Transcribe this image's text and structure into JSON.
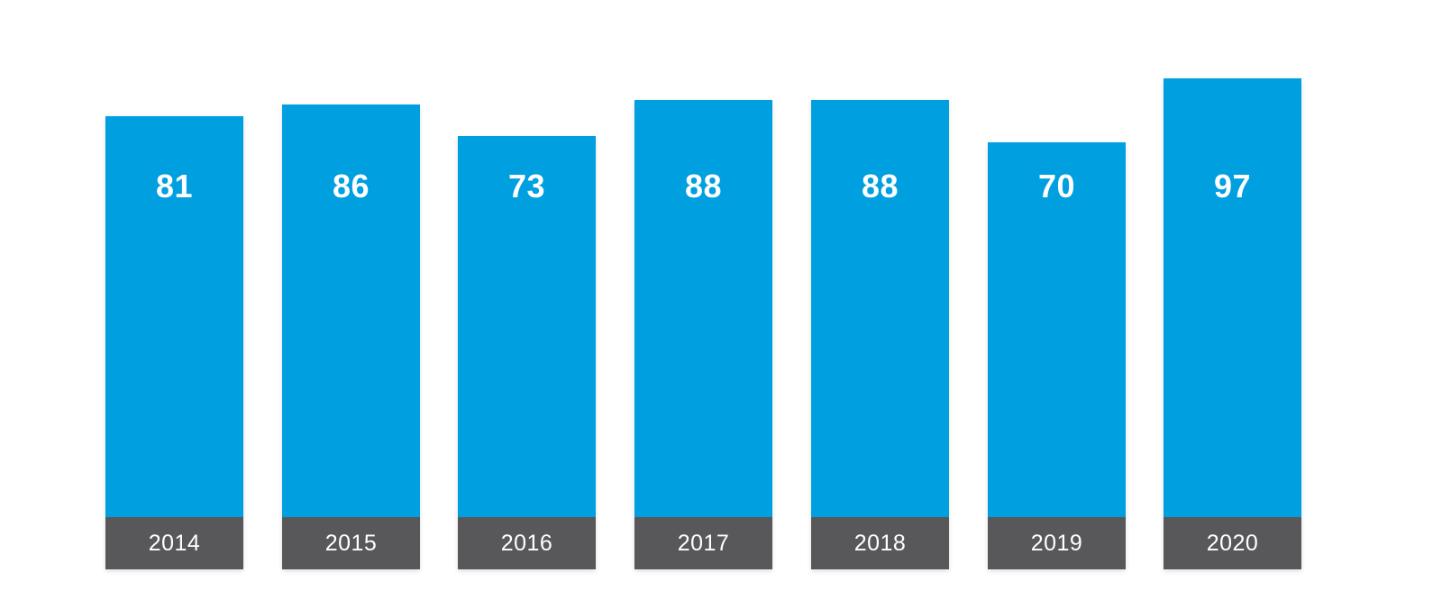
{
  "chart_data": {
    "type": "bar",
    "title": "",
    "xlabel": "",
    "ylabel": "",
    "categories": [
      "2014",
      "2015",
      "2016",
      "2017",
      "2018",
      "2019",
      "2020"
    ],
    "values": [
      81,
      86,
      73,
      88,
      88,
      70,
      97
    ],
    "legend": "none",
    "gridlines": false,
    "axes_visible": false,
    "value_labels_position": "inside-upper",
    "category_labels_position": "inside-base-band",
    "colors": {
      "bar": "#009FE0",
      "base_band": "#58585A",
      "value_label": "#FFFFFF",
      "category_label": "#FFFFFF",
      "background": "#FFFFFF"
    }
  }
}
